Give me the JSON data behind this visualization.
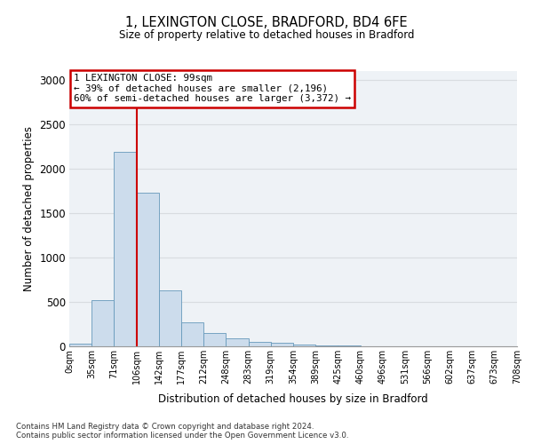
{
  "title1": "1, LEXINGTON CLOSE, BRADFORD, BD4 6FE",
  "title2": "Size of property relative to detached houses in Bradford",
  "xlabel": "Distribution of detached houses by size in Bradford",
  "ylabel": "Number of detached properties",
  "footnote": "Contains HM Land Registry data © Crown copyright and database right 2024.\nContains public sector information licensed under the Open Government Licence v3.0.",
  "bin_labels": [
    "0sqm",
    "35sqm",
    "71sqm",
    "106sqm",
    "142sqm",
    "177sqm",
    "212sqm",
    "248sqm",
    "283sqm",
    "319sqm",
    "354sqm",
    "389sqm",
    "425sqm",
    "460sqm",
    "496sqm",
    "531sqm",
    "566sqm",
    "602sqm",
    "637sqm",
    "673sqm",
    "708sqm"
  ],
  "bar_values": [
    30,
    520,
    2190,
    1730,
    630,
    275,
    150,
    90,
    50,
    45,
    20,
    15,
    10,
    5,
    0,
    0,
    5,
    0,
    0,
    0
  ],
  "bar_color": "#ccdcec",
  "bar_edge_color": "#6699bb",
  "red_line_x": 3.0,
  "annotation_text": "1 LEXINGTON CLOSE: 99sqm\n← 39% of detached houses are smaller (2,196)\n60% of semi-detached houses are larger (3,372) →",
  "annotation_box_color": "#ffffff",
  "annotation_box_edge": "#cc0000",
  "ylim_max": 3100,
  "grid_color": "#d8dce0",
  "plot_bg_color": "#eef2f6"
}
